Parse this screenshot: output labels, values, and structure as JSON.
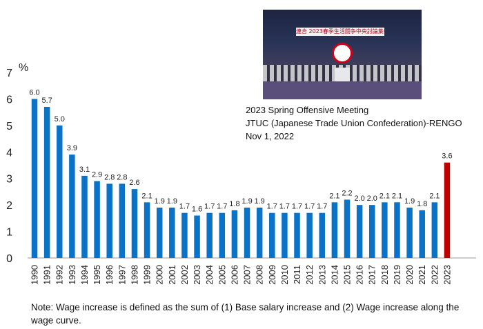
{
  "chart_data": {
    "type": "bar",
    "unit_label": "%",
    "ylim": [
      0,
      7
    ],
    "yticks": [
      0,
      1,
      2,
      3,
      4,
      5,
      6,
      7
    ],
    "categories": [
      "1990",
      "1991",
      "1992",
      "1993",
      "1994",
      "1995",
      "1996",
      "1997",
      "1998",
      "1999",
      "2000",
      "2001",
      "2002",
      "2003",
      "2004",
      "2005",
      "2006",
      "2007",
      "2008",
      "2009",
      "2010",
      "2011",
      "2012",
      "2013",
      "2014",
      "2015",
      "2016",
      "2017",
      "2018",
      "2019",
      "2020",
      "2021",
      "2022",
      "2023"
    ],
    "values": [
      6.0,
      5.7,
      5.0,
      3.9,
      3.1,
      2.9,
      2.8,
      2.8,
      2.6,
      2.1,
      1.9,
      1.9,
      1.7,
      1.6,
      1.7,
      1.7,
      1.8,
      1.9,
      1.9,
      1.7,
      1.7,
      1.7,
      1.7,
      1.7,
      2.1,
      2.2,
      2.0,
      2.0,
      2.1,
      2.1,
      1.9,
      1.8,
      2.1,
      3.6
    ],
    "value_labels": [
      "6.0",
      "5.7",
      "5.0",
      "3.9",
      "3.1",
      "2.9",
      "2.8",
      "2.8",
      "2.6",
      "2.1",
      "1.9",
      "1.9",
      "1.7",
      "1.6",
      "1.7",
      "1.7",
      "1.8",
      "1.9",
      "1.9",
      "1.7",
      "1.7",
      "1.7",
      "1.7",
      "1.7",
      "2.1",
      "2.2",
      "2.0",
      "2.0",
      "2.1",
      "2.1",
      "1.9",
      "1.8",
      "2.1",
      "3.6"
    ],
    "colors": {
      "default": "#0a73c7",
      "highlight": "#c00000"
    },
    "highlight_index": 33,
    "grid": false
  },
  "photo": {
    "banner_text": "連合 2023春季生活闘争中央討論集会"
  },
  "caption": {
    "line1": "2023 Spring Offensive Meeting",
    "line2": "JTUC (Japanese Trade Union Confederation)-RENGO",
    "line3": "Nov 1, 2022"
  },
  "note": {
    "text": "Note: Wage increase is defined as the sum of (1) Base salary increase and (2) Wage increase along the wage curve."
  }
}
